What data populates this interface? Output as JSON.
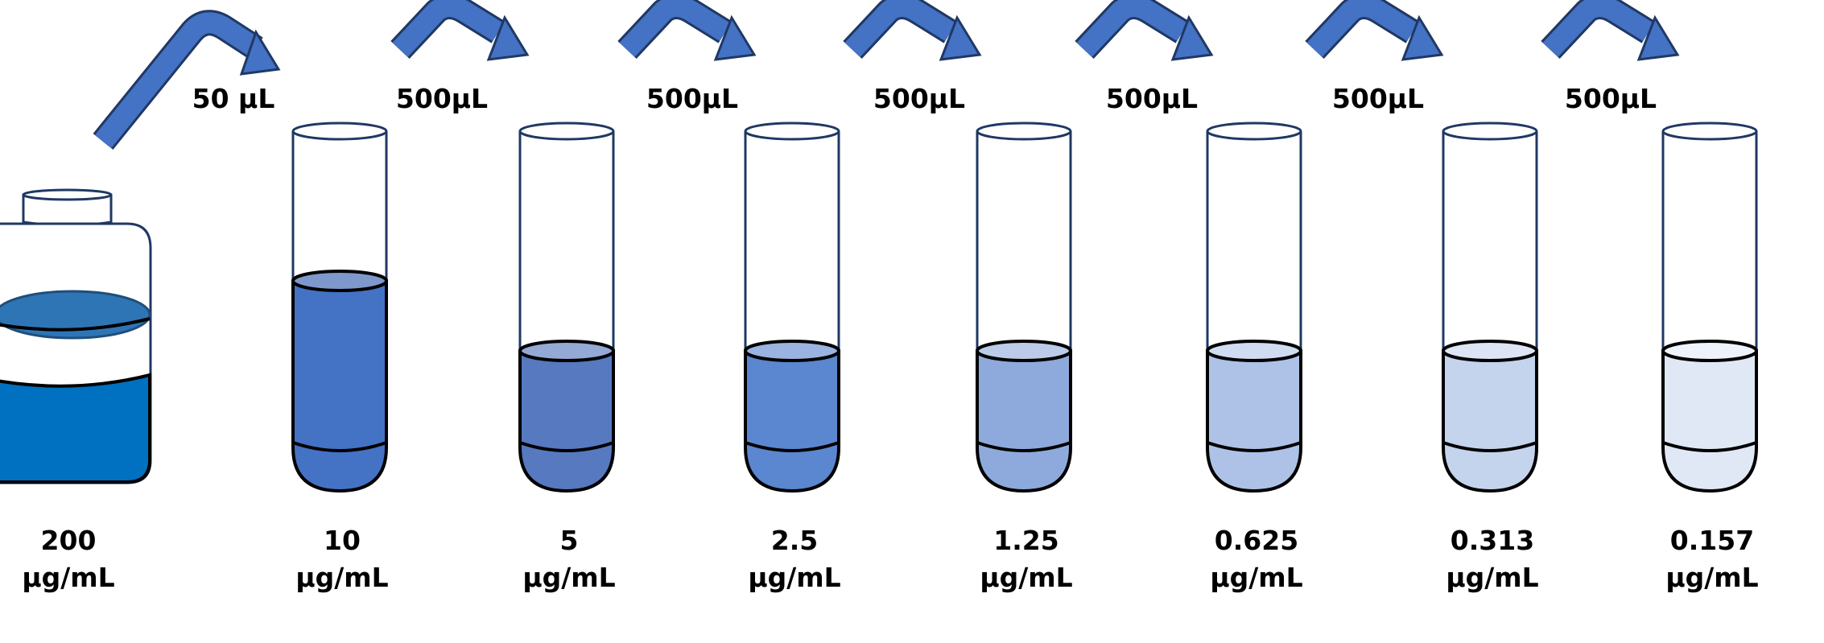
{
  "colors": {
    "arrow_fill": "#4472c4",
    "arrow_outline": "#203864",
    "tube_outline": "#1f3864",
    "liquid_outline": "#000000",
    "stock_liquid": "#0070c0",
    "stock_surface": "#2e75b6"
  },
  "stock": {
    "concentration": "200",
    "unit": "µg/mL"
  },
  "transfers": [
    {
      "volume": "50 µL"
    },
    {
      "volume": "500µL"
    },
    {
      "volume": "500µL"
    },
    {
      "volume": "500µL"
    },
    {
      "volume": "500µL"
    },
    {
      "volume": "500µL"
    },
    {
      "volume": "500µL"
    }
  ],
  "tubes": [
    {
      "concentration": "10",
      "unit": "µg/mL",
      "fill": "#4472c4",
      "surface": "#7f98cc",
      "level": "high"
    },
    {
      "concentration": "5",
      "unit": "µg/mL",
      "fill": "#5679c0",
      "surface": "#94a9d6",
      "level": "low"
    },
    {
      "concentration": "2.5",
      "unit": "µg/mL",
      "fill": "#5b86d0",
      "surface": "#9bb3e0",
      "level": "low"
    },
    {
      "concentration": "1.25",
      "unit": "µg/mL",
      "fill": "#8eaadc",
      "surface": "#bccbea",
      "level": "low"
    },
    {
      "concentration": "0.625",
      "unit": "µg/mL",
      "fill": "#adc2e6",
      "surface": "#d0dcf1",
      "level": "low"
    },
    {
      "concentration": "0.313",
      "unit": "µg/mL",
      "fill": "#c5d4ed",
      "surface": "#dde5f4",
      "level": "low"
    },
    {
      "concentration": "0.157",
      "unit": "µg/mL",
      "fill": "#e1e8f5",
      "surface": "#eef2fa",
      "level": "low"
    }
  ]
}
